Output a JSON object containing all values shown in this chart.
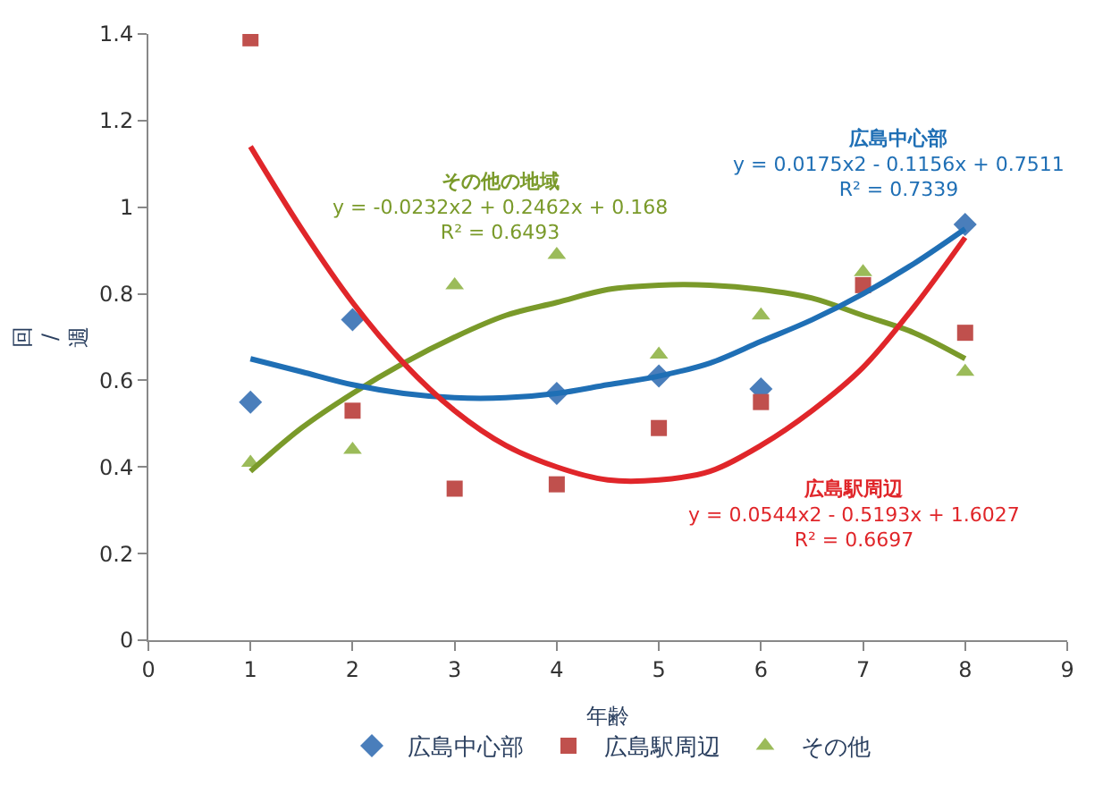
{
  "chart_data": {
    "type": "scatter",
    "xlabel": "年齢",
    "ylabel": "回/週",
    "xlim": [
      0,
      9
    ],
    "xticks": [
      0,
      1,
      2,
      3,
      4,
      5,
      6,
      7,
      8,
      9
    ],
    "ylim": [
      0,
      1.4
    ],
    "yticks": [
      0,
      0.2,
      0.4,
      0.6,
      0.8,
      1,
      1.2,
      1.4
    ],
    "legend": "bottom",
    "x": [
      1,
      2,
      3,
      4,
      5,
      6,
      7,
      8
    ],
    "series": [
      {
        "name": "広島中心部",
        "color": "#4a7ebb",
        "marker": "diamond",
        "values": [
          0.55,
          0.74,
          null,
          0.57,
          0.61,
          0.58,
          null,
          0.96
        ]
      },
      {
        "name": "広島駅周辺",
        "color": "#c0504d",
        "marker": "square",
        "values": [
          1.39,
          0.53,
          0.35,
          0.36,
          0.49,
          0.55,
          0.82,
          0.71
        ]
      },
      {
        "name": "その他",
        "color": "#9bbb59",
        "marker": "triangle",
        "values": [
          0.41,
          0.44,
          0.82,
          0.89,
          0.66,
          0.75,
          0.85,
          0.62
        ]
      },
      {
        "type": "line",
        "color": "#7a9a2a",
        "marker": "none",
        "x": [
          1,
          1.5,
          2,
          2.5,
          3,
          3.5,
          4,
          4.5,
          5,
          5.5,
          6,
          6.5,
          7,
          7.5,
          8
        ],
        "values": [
          0.39,
          0.49,
          0.57,
          0.64,
          0.7,
          0.75,
          0.78,
          0.81,
          0.82,
          0.82,
          0.81,
          0.79,
          0.75,
          0.71,
          0.65
        ]
      },
      {
        "type": "line",
        "color": "#1f6fb5",
        "marker": "none",
        "x": [
          1,
          1.5,
          2,
          2.5,
          3,
          3.5,
          4,
          4.5,
          5,
          5.5,
          6,
          6.5,
          7,
          7.5,
          8
        ],
        "values": [
          0.65,
          0.62,
          0.59,
          0.57,
          0.56,
          0.56,
          0.57,
          0.59,
          0.61,
          0.64,
          0.69,
          0.74,
          0.8,
          0.87,
          0.95
        ]
      },
      {
        "type": "line",
        "color": "#e0262a",
        "marker": "none",
        "x": [
          1,
          1.5,
          2,
          2.5,
          3,
          3.5,
          4,
          4.5,
          5,
          5.5,
          6,
          6.5,
          7,
          7.5,
          8
        ],
        "values": [
          1.14,
          0.95,
          0.78,
          0.64,
          0.53,
          0.45,
          0.4,
          0.37,
          0.37,
          0.39,
          0.45,
          0.53,
          0.63,
          0.77,
          0.93
        ]
      }
    ],
    "annotations": [
      "その他の地域\ny = -0.0232x2 + 0.2462x + 0.168\nR² = 0.6493",
      "広島中心部\ny = 0.0175x2 - 0.1156x + 0.7511\nR² = 0.7339",
      "広島駅周辺\ny = 0.0544x2 - 0.5193x + 1.6027\nR² = 0.6697"
    ]
  }
}
